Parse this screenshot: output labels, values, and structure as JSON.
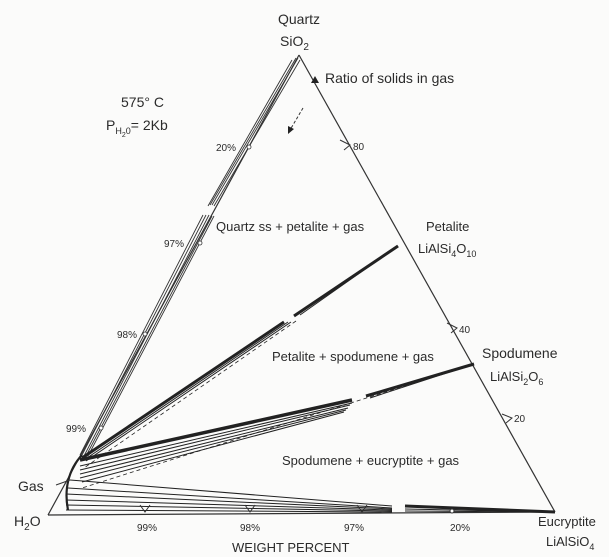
{
  "vertices": {
    "quartz_name": "Quartz",
    "quartz_formula": "SiO",
    "quartz_sub": "2",
    "petalite_name": "Petalite",
    "petalite_f1": "LiAlSi",
    "petalite_s1": "4",
    "petalite_f2": "O",
    "petalite_s2": "10",
    "spodumene_name": "Spodumene",
    "spodumene_f1": "LiAlSi",
    "spodumene_s1": "2",
    "spodumene_f2": "O",
    "spodumene_s2": "6",
    "eucryptite_name": "Eucryptite",
    "eucryptite_f1": "LiAlSiO",
    "eucryptite_s1": "4",
    "h2o_h": "H",
    "h2o_s": "2",
    "h2o_o": "O",
    "gas": "Gas"
  },
  "conditions": {
    "temperature": "575° C",
    "pressure_p": "P",
    "pressure_sub_h": "H",
    "pressure_sub_2": "2",
    "pressure_sub_o": "0",
    "pressure_value": "= 2Kb"
  },
  "fields": {
    "quartz_petalite": "Quartz ss + petalite + gas",
    "petalite_spodumene": "Petalite + spodumene + gas",
    "spodumene_eucryptite": "Spodumene + eucryptite + gas"
  },
  "ratio_label": "Ratio of solids in gas",
  "axis_label": "WEIGHT PERCENT",
  "left_ticks": [
    "20%",
    "97%",
    "98%",
    "99%"
  ],
  "bottom_ticks": [
    "99%",
    "98%",
    "97%",
    "20%"
  ],
  "right_ticks": [
    "80",
    "40",
    "20"
  ]
}
